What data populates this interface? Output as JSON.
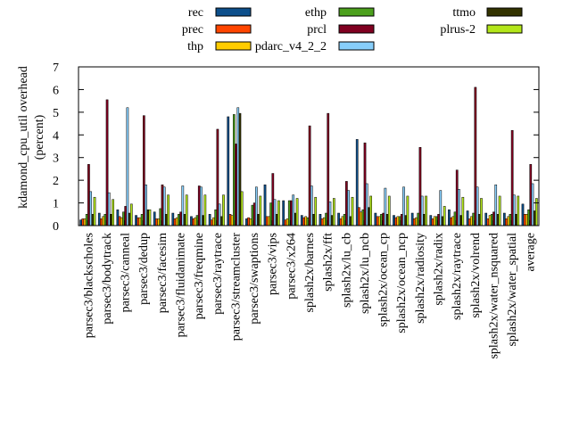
{
  "chart_data": {
    "type": "bar",
    "ylabel": "kdamond_cpu_util overhead\n(percent)",
    "ylim": [
      0,
      7
    ],
    "yticks": [
      0,
      1,
      2,
      3,
      4,
      5,
      6,
      7
    ],
    "grid": false,
    "legend_placement": "top",
    "categories": [
      "parsec3/blackscholes",
      "parsec3/bodytrack",
      "parsec3/canneal",
      "parsec3/dedup",
      "parsec3/facesim",
      "parsec3/fluidanimate",
      "parsec3/freqmine",
      "parsec3/raytrace",
      "parsec3/streamcluster",
      "parsec3/swaptions",
      "parsec3/vips",
      "parsec3/x264",
      "splash2x/barnes",
      "splash2x/fft",
      "splash2x/lu_cb",
      "splash2x/lu_ncb",
      "splash2x/ocean_cp",
      "splash2x/ocean_ncp",
      "splash2x/radiosity",
      "splash2x/radix",
      "splash2x/raytrace",
      "splash2x/volrend",
      "splash2x/water_nsquared",
      "splash2x/water_spatial",
      "average"
    ],
    "series": [
      {
        "name": "rec",
        "color": "#0d4f8b",
        "values": [
          0.25,
          0.55,
          0.7,
          0.45,
          0.6,
          0.55,
          0.4,
          0.5,
          4.8,
          0.3,
          1.8,
          1.1,
          0.45,
          0.5,
          0.55,
          3.8,
          0.55,
          0.45,
          0.55,
          0.45,
          0.7,
          0.65,
          0.55,
          0.55,
          0.95
        ]
      },
      {
        "name": "prec",
        "color": "#ff4500",
        "values": [
          0.3,
          0.3,
          0.4,
          0.35,
          0.3,
          0.3,
          0.3,
          0.25,
          0.5,
          0.35,
          0.4,
          0.25,
          0.35,
          0.3,
          0.3,
          0.8,
          0.4,
          0.35,
          0.3,
          0.3,
          0.35,
          0.3,
          0.3,
          0.3,
          0.5
        ]
      },
      {
        "name": "thp",
        "color": "#ffcc00",
        "values": [
          0.3,
          0.4,
          0.35,
          0.35,
          0.3,
          0.35,
          0.35,
          0.35,
          0.45,
          0.3,
          0.4,
          0.3,
          0.4,
          0.35,
          0.4,
          0.6,
          0.4,
          0.4,
          0.35,
          0.4,
          0.4,
          0.4,
          0.45,
          0.4,
          0.5
        ]
      },
      {
        "name": "ethp",
        "color": "#4ca01d",
        "values": [
          0.5,
          0.5,
          0.6,
          0.5,
          0.75,
          0.5,
          0.45,
          0.7,
          4.9,
          0.9,
          1.0,
          1.1,
          0.35,
          0.55,
          0.5,
          0.7,
          0.5,
          0.4,
          0.55,
          0.4,
          0.6,
          0.55,
          0.5,
          0.5,
          0.7
        ]
      },
      {
        "name": "prcl",
        "color": "#800020",
        "values": [
          2.7,
          5.55,
          0.85,
          4.85,
          1.8,
          0.6,
          1.75,
          4.25,
          3.6,
          1.0,
          2.3,
          1.1,
          4.4,
          4.95,
          1.95,
          3.65,
          0.55,
          0.5,
          3.45,
          0.5,
          2.45,
          6.1,
          0.6,
          4.2,
          2.7
        ]
      },
      {
        "name": "pdarc_v4_2_2",
        "color": "#87cefa",
        "values": [
          1.5,
          1.45,
          5.2,
          1.8,
          1.7,
          1.75,
          1.7,
          0.95,
          5.2,
          1.7,
          1.15,
          1.35,
          1.75,
          1.05,
          1.55,
          1.85,
          1.65,
          1.7,
          1.3,
          1.55,
          1.6,
          1.7,
          1.8,
          1.35,
          1.85
        ]
      },
      {
        "name": "ttmo",
        "color": "#333300",
        "values": [
          0.5,
          0.5,
          0.55,
          0.7,
          0.5,
          0.5,
          0.45,
          0.4,
          4.95,
          0.5,
          0.5,
          0.55,
          0.5,
          0.45,
          0.4,
          0.8,
          0.5,
          0.45,
          0.5,
          0.4,
          0.45,
          0.5,
          0.5,
          0.5,
          0.65
        ]
      },
      {
        "name": "plrus-2",
        "color": "#b3e61a",
        "values": [
          1.25,
          1.15,
          0.95,
          0.7,
          1.35,
          1.35,
          1.35,
          1.35,
          1.5,
          1.3,
          1.1,
          1.2,
          1.25,
          1.2,
          1.25,
          1.3,
          1.3,
          1.3,
          1.3,
          0.85,
          1.25,
          1.2,
          1.3,
          1.3,
          1.2
        ]
      }
    ]
  }
}
